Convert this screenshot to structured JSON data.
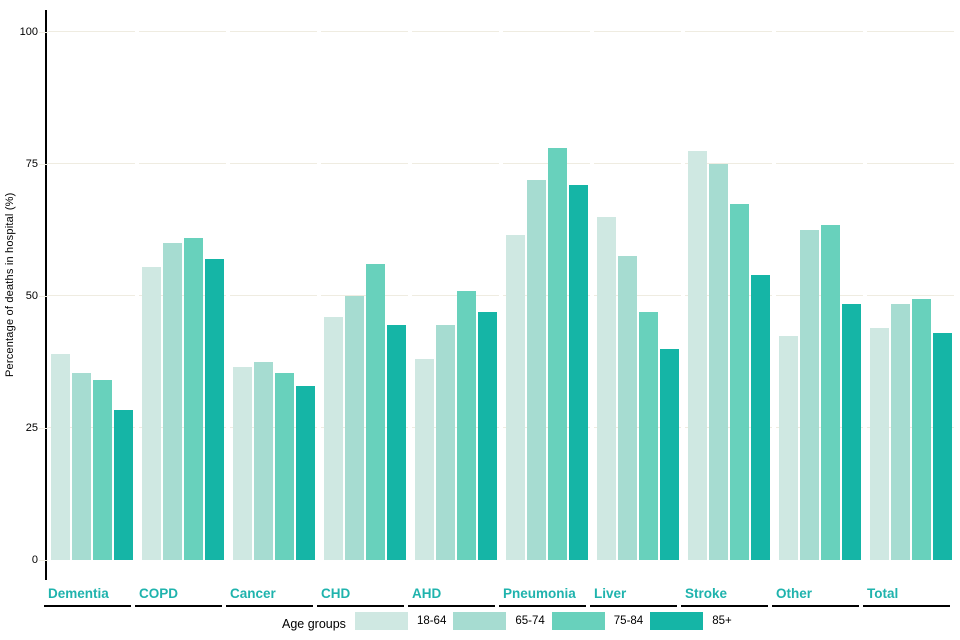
{
  "chart_data": {
    "type": "bar",
    "title": "",
    "ylabel": "Percentage of deaths in hospital (%)",
    "xlabel": "",
    "legend_title": "Age groups",
    "legend_position": "bottom",
    "grid": "horizontal-segmented",
    "gridline_color": "#efece1",
    "category_label_color": "#1fb3ad",
    "axis_color": "#000000",
    "ylim": [
      0,
      104
    ],
    "yticks": [
      0,
      25,
      50,
      75,
      100
    ],
    "categories": [
      "Dementia",
      "COPD",
      "Cancer",
      "CHD",
      "AHD",
      "Pneumonia",
      "Liver",
      "Stroke",
      "Other",
      "Total"
    ],
    "series": [
      {
        "name": "18-64",
        "color": "#cfe8e2",
        "values": [
          39,
          55.5,
          36.5,
          46,
          38,
          61.5,
          65,
          77.5,
          42.5,
          44
        ]
      },
      {
        "name": "65-74",
        "color": "#a6dcd1",
        "values": [
          35.5,
          60,
          37.5,
          50,
          44.5,
          72,
          57.5,
          75,
          62.5,
          48.5
        ]
      },
      {
        "name": "75-84",
        "color": "#68d1bc",
        "values": [
          34,
          61,
          35.5,
          56,
          51,
          78,
          47,
          67.5,
          63.5,
          49.5
        ]
      },
      {
        "name": "85+",
        "color": "#15b5a6",
        "values": [
          28.5,
          57,
          33,
          44.5,
          47,
          71,
          40,
          54,
          48.5,
          43
        ]
      }
    ]
  }
}
